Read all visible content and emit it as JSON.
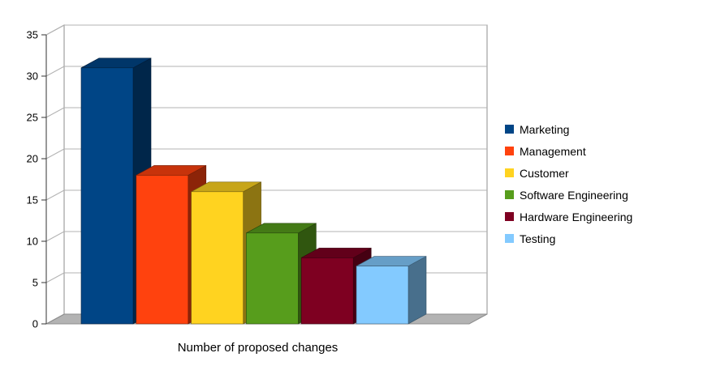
{
  "chart_data": {
    "type": "bar",
    "variant": "3d-column",
    "title": "",
    "xlabel": "Number of proposed changes",
    "ylabel": "",
    "categories": [
      "Marketing",
      "Management",
      "Customer",
      "Software Engineering",
      "Hardware Engineering",
      "Testing"
    ],
    "values": [
      31,
      18,
      16,
      11,
      8,
      7
    ],
    "colors": [
      "#004586",
      "#ff420e",
      "#ffd320",
      "#579d1c",
      "#7e0021",
      "#83caff"
    ],
    "ylim": [
      0,
      35
    ],
    "yticks": [
      0,
      5,
      10,
      15,
      20,
      25,
      30,
      35
    ],
    "grid": true,
    "legend_position": "right",
    "wall_color": "#ffffff",
    "floor_color": "#b3b3b3",
    "gridline_color": "#b3b3b3",
    "axis_color": "#333333",
    "background_color": "#ffffff"
  }
}
